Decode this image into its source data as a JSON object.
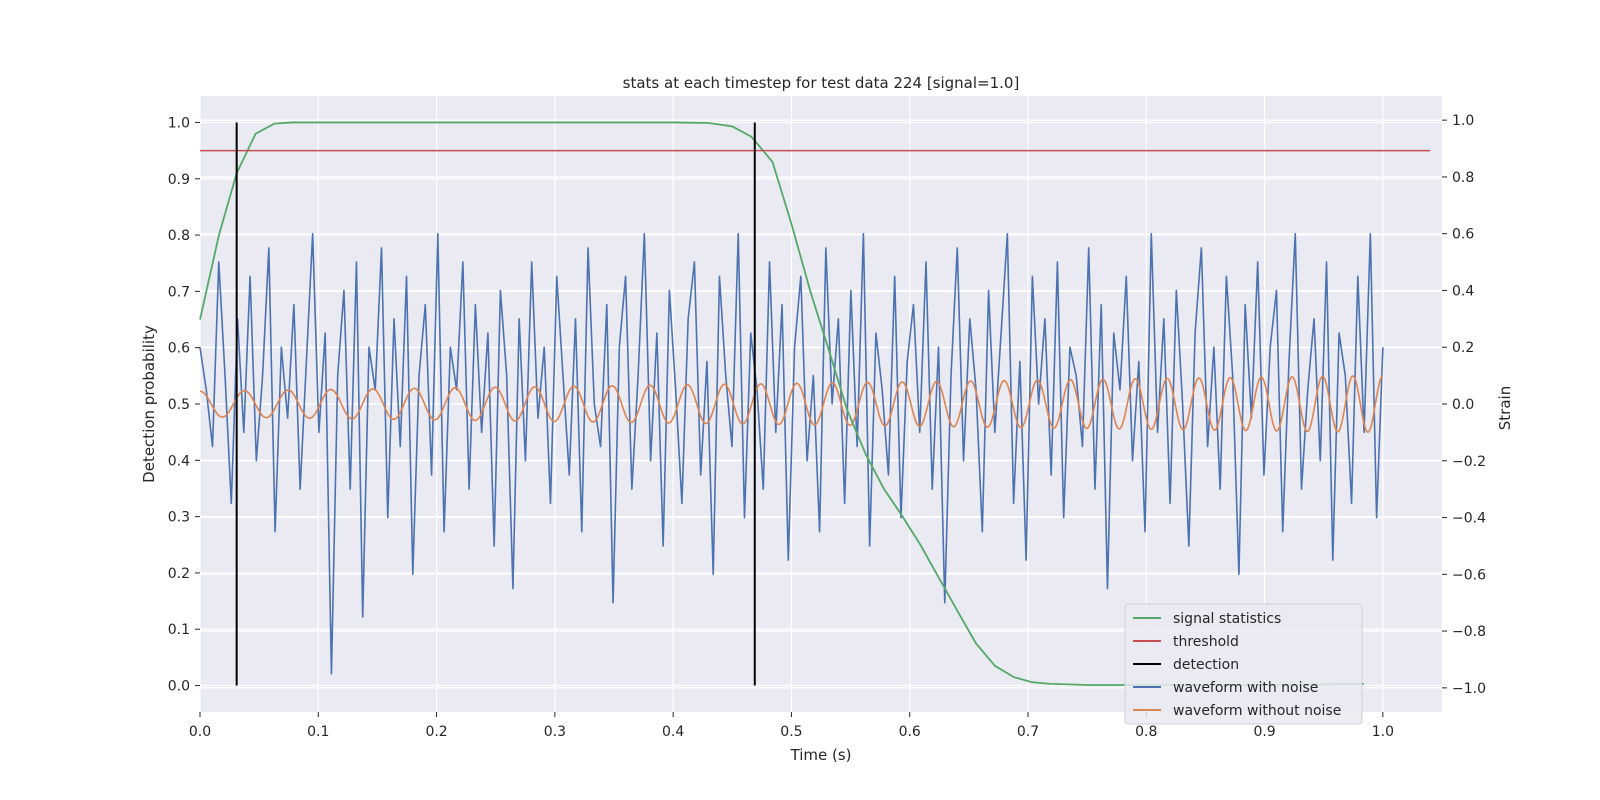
{
  "chart_data": {
    "type": "line",
    "title": "stats at each timestep for test data 224 [signal=1.0]",
    "xlabel": "Time (s)",
    "ylabel_left": "Detection probability",
    "ylabel_right": "Strain",
    "xlim": [
      0.0,
      1.05
    ],
    "ylim_left": [
      -0.047,
      1.047
    ],
    "ylim_right": [
      -1.085,
      1.085
    ],
    "x_ticks": [
      "0.0",
      "0.1",
      "0.2",
      "0.3",
      "0.4",
      "0.5",
      "0.6",
      "0.7",
      "0.8",
      "0.9",
      "1.0"
    ],
    "y_left_ticks": [
      "0.0",
      "0.1",
      "0.2",
      "0.3",
      "0.4",
      "0.5",
      "0.6",
      "0.7",
      "0.8",
      "0.9",
      "1.0"
    ],
    "y_right_ticks": [
      "−1.0",
      "−0.8",
      "−0.6",
      "−0.4",
      "−0.2",
      "0.0",
      "0.2",
      "0.4",
      "0.6",
      "0.8",
      "1.0"
    ],
    "grid": true,
    "legend_position": "lower-right",
    "colors": {
      "signal_statistics": "#55a868",
      "threshold": "#c44e52",
      "detection": "#000000",
      "waveform_with_noise": "#4c72b0",
      "waveform_without_noise": "#dd8452",
      "background": "#eaeaf2",
      "grid": "#ffffff"
    },
    "legend": [
      {
        "key": "signal_statistics",
        "label": "signal statistics"
      },
      {
        "key": "threshold",
        "label": "threshold"
      },
      {
        "key": "detection",
        "label": "detection"
      },
      {
        "key": "waveform_with_noise",
        "label": "waveform with noise"
      },
      {
        "key": "waveform_without_noise",
        "label": "waveform without noise"
      }
    ],
    "series": [
      {
        "name": "signal statistics",
        "axis": "left",
        "x": [
          0.0,
          0.016,
          0.031,
          0.047,
          0.063,
          0.078,
          0.1,
          0.2,
          0.3,
          0.4,
          0.43,
          0.45,
          0.466,
          0.484,
          0.5,
          0.516,
          0.531,
          0.547,
          0.563,
          0.578,
          0.594,
          0.609,
          0.625,
          0.641,
          0.656,
          0.672,
          0.688,
          0.703,
          0.719,
          0.734,
          0.75,
          0.8,
          0.85,
          0.9,
          0.95,
          0.984
        ],
        "y": [
          0.65,
          0.8,
          0.91,
          0.98,
          0.998,
          1.0,
          1.0,
          1.0,
          1.0,
          1.0,
          0.999,
          0.993,
          0.975,
          0.93,
          0.82,
          0.7,
          0.6,
          0.49,
          0.41,
          0.35,
          0.3,
          0.25,
          0.19,
          0.13,
          0.075,
          0.035,
          0.015,
          0.006,
          0.003,
          0.002,
          0.001,
          0.001,
          0.001,
          0.001,
          0.002,
          0.003
        ]
      },
      {
        "name": "threshold",
        "axis": "left",
        "x": [
          0.0,
          1.04
        ],
        "y": [
          0.95,
          0.95
        ]
      },
      {
        "name": "detection",
        "axis": "left",
        "segments": [
          {
            "x": 0.031,
            "y0": 0.0,
            "y1": 1.0
          },
          {
            "x": 0.469,
            "y0": 0.0,
            "y1": 1.0
          }
        ]
      },
      {
        "name": "waveform with noise",
        "axis": "right",
        "x_start": 0.0,
        "x_end": 1.0,
        "y": [
          0.2,
          0.05,
          -0.15,
          0.5,
          0.1,
          -0.35,
          0.3,
          -0.1,
          0.45,
          -0.2,
          0.1,
          0.55,
          -0.45,
          0.2,
          -0.05,
          0.35,
          -0.3,
          0.15,
          0.6,
          -0.1,
          0.25,
          -0.95,
          0.1,
          0.4,
          -0.3,
          0.5,
          -0.75,
          0.2,
          0.05,
          0.55,
          -0.4,
          0.3,
          -0.15,
          0.45,
          -0.6,
          0.1,
          0.35,
          -0.25,
          0.6,
          -0.45,
          0.2,
          0.05,
          0.5,
          -0.3,
          0.35,
          -0.1,
          0.25,
          -0.5,
          0.4,
          0.1,
          -0.65,
          0.3,
          -0.2,
          0.5,
          -0.05,
          0.2,
          -0.35,
          0.45,
          0.1,
          -0.25,
          0.3,
          -0.45,
          0.55,
          0.0,
          -0.15,
          0.35,
          -0.7,
          0.2,
          0.45,
          -0.3,
          0.1,
          0.6,
          -0.2,
          0.25,
          -0.5,
          0.4,
          0.05,
          -0.35,
          0.3,
          0.5,
          -0.25,
          0.15,
          -0.6,
          0.45,
          0.1,
          -0.15,
          0.6,
          -0.4,
          0.25,
          0.05,
          -0.3,
          0.5,
          -0.1,
          0.35,
          -0.55,
          0.2,
          0.45,
          -0.2,
          0.1,
          -0.45,
          0.55,
          0.0,
          0.3,
          -0.35,
          0.4,
          -0.15,
          0.6,
          -0.5,
          0.25,
          0.05,
          -0.25,
          0.45,
          -0.4,
          0.15,
          0.35,
          -0.1,
          0.5,
          -0.3,
          0.2,
          -0.7,
          0.1,
          0.55,
          -0.2,
          0.3,
          0.05,
          -0.45,
          0.4,
          -0.1,
          0.25,
          0.6,
          -0.35,
          0.15,
          -0.55,
          0.45,
          0.0,
          0.3,
          -0.25,
          0.5,
          -0.4,
          0.2,
          0.1,
          -0.15,
          0.55,
          -0.3,
          0.35,
          -0.65,
          0.25,
          0.05,
          0.45,
          -0.2,
          0.15,
          -0.45,
          0.6,
          -0.1,
          0.3,
          -0.35,
          0.4,
          0.0,
          -0.5,
          0.25,
          0.55,
          -0.15,
          0.2,
          -0.3,
          0.45,
          0.1,
          -0.6,
          0.35,
          -0.05,
          0.5,
          -0.25,
          0.2,
          0.4,
          -0.45,
          0.15,
          0.6,
          -0.3,
          0.05,
          0.3,
          -0.2,
          0.5,
          -0.55,
          0.25,
          0.1,
          -0.35,
          0.45,
          -0.1,
          0.6,
          -0.4,
          0.2
        ]
      },
      {
        "name": "waveform without noise",
        "axis": "right",
        "x_start": 0.0,
        "x_end": 1.0,
        "amplitude_start": 0.045,
        "amplitude_end": 0.1,
        "cycles": 33
      }
    ]
  }
}
